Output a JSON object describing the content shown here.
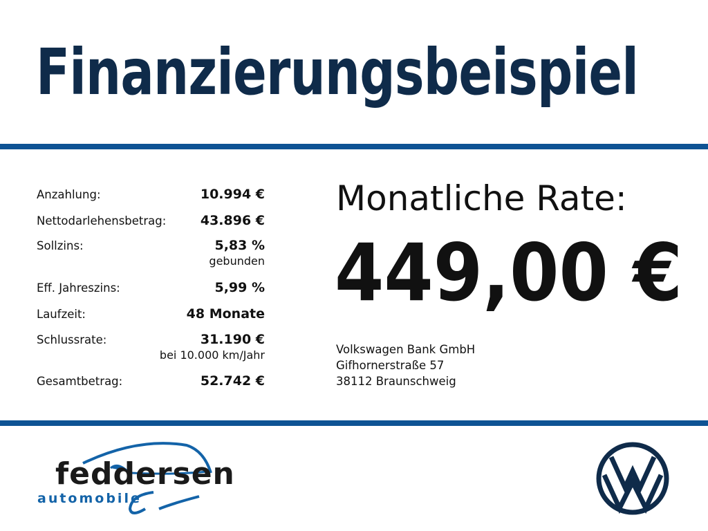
{
  "title": "Finanzierungsbeispiel",
  "colors": {
    "title": "#0f2b4a",
    "bar": "#0e5394",
    "logo_blue": "#1363a8"
  },
  "rows": [
    {
      "label": "Anzahlung:",
      "value": "10.994 €"
    },
    {
      "label": "Nettodarlehensbetrag:",
      "value": "43.896 €"
    },
    {
      "label": "Sollzins:",
      "value": "5,83 %",
      "note": "gebunden"
    },
    {
      "label": "Eff. Jahreszins:",
      "value": "5,99 %"
    },
    {
      "label": "Laufzeit:",
      "value": "48 Monate"
    },
    {
      "label": "Schlussrate:",
      "value": "31.190 €",
      "note": "bei 10.000 km/Jahr"
    },
    {
      "label": "Gesamtbetrag:",
      "value": "52.742 €"
    }
  ],
  "rate": {
    "label": "Monatliche Rate:",
    "value": "449,00 €"
  },
  "bank": {
    "name": "Volkswagen Bank GmbH",
    "street": "Gifhornerstraße 57",
    "city": "38112 Braunschweig"
  },
  "dealer_logo": {
    "name": "feddersen",
    "tagline": "automobile"
  },
  "brand_logo": "vw-logo"
}
